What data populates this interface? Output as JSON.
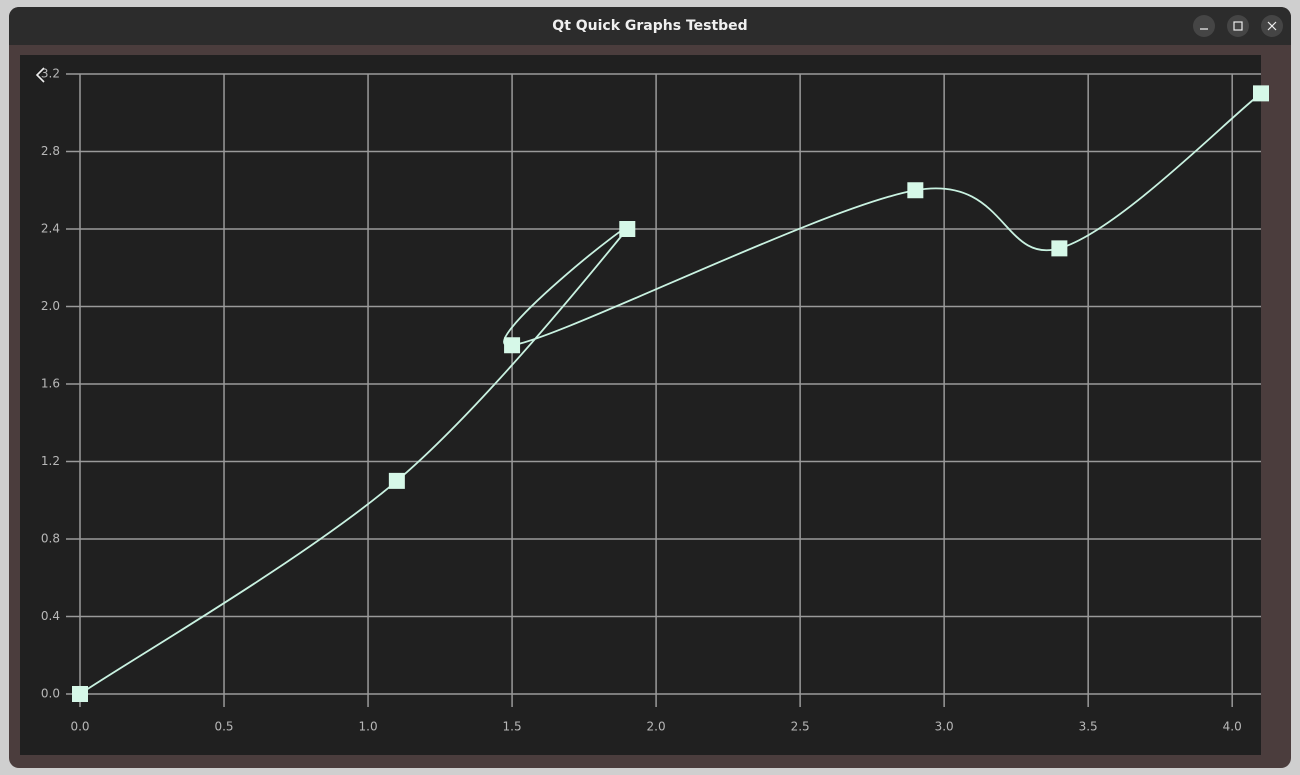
{
  "window": {
    "title": "Qt Quick Graphs Testbed"
  },
  "chart_data": {
    "type": "spline",
    "x": [
      0,
      1.1,
      1.9,
      1.5,
      2.9,
      3.4,
      4.1
    ],
    "values": [
      0,
      1.1,
      2.4,
      1.8,
      2.6,
      2.3,
      3.1
    ],
    "color": "#c9f2e1",
    "marker_color": "#d6f8e8",
    "xlim": [
      0,
      4.1
    ],
    "ylim": [
      0,
      3.2
    ],
    "xticks": [
      {
        "value": 0,
        "label": "0.0"
      },
      0.5,
      {
        "value": 1,
        "label": "1.0"
      },
      1.5,
      {
        "value": 2,
        "label": "2.0"
      },
      2.5,
      {
        "value": 3,
        "label": "3.0"
      },
      3.5,
      {
        "value": 4,
        "label": "4.0"
      }
    ],
    "yticks": [
      {
        "value": 0,
        "label": "0.0"
      },
      0.4,
      0.8,
      1.2,
      1.6,
      {
        "value": 2,
        "label": "2.0"
      },
      2.4,
      2.8,
      3.2
    ],
    "grid": true
  }
}
